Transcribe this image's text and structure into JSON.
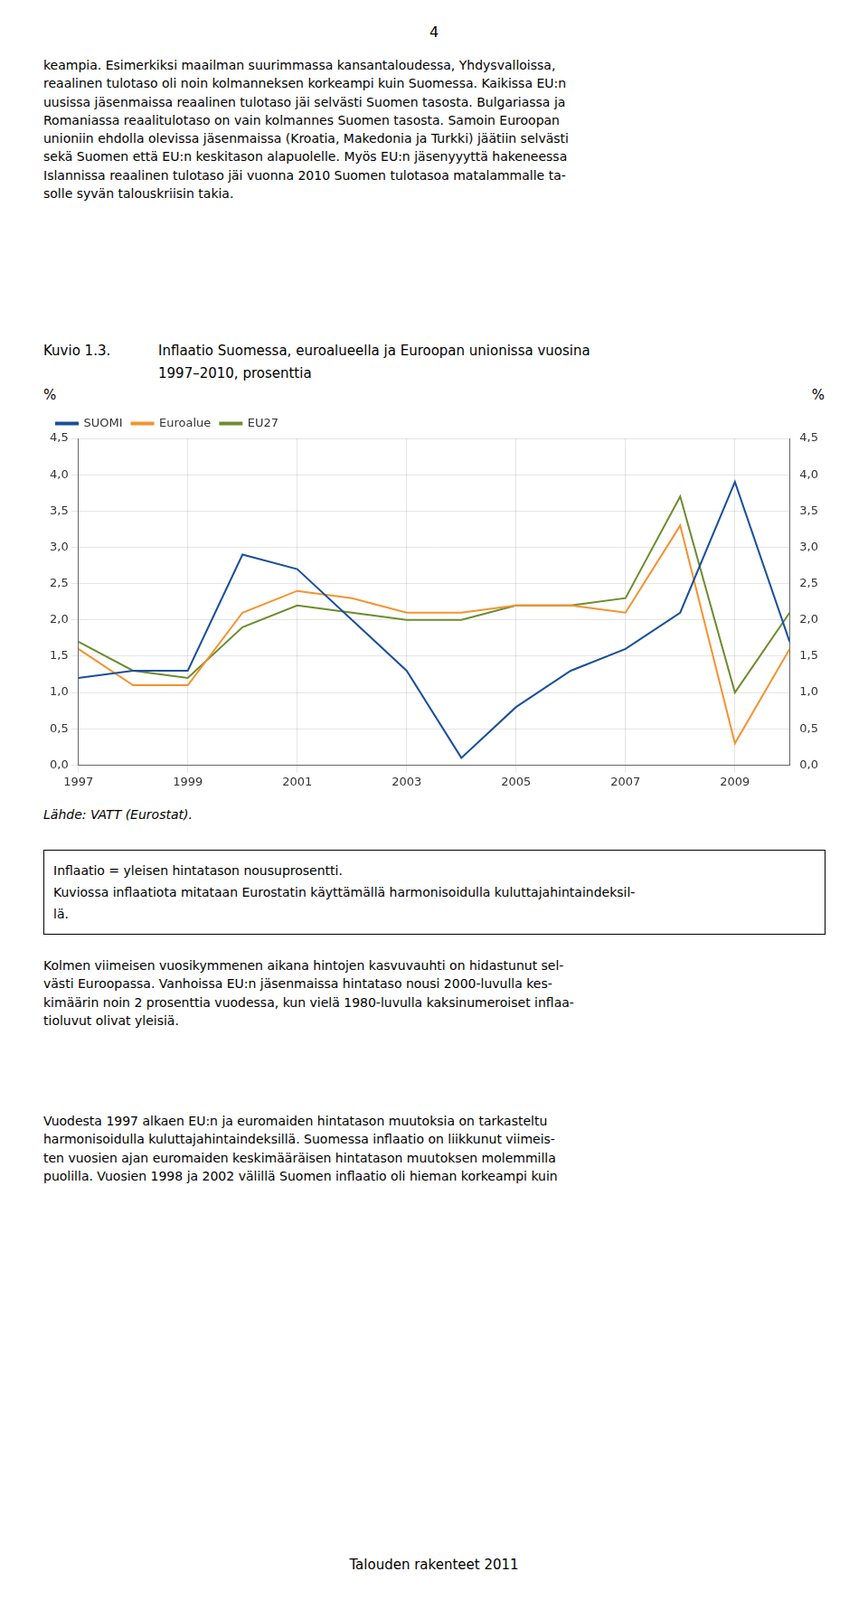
{
  "page": {
    "page_number": "4",
    "top_para": "keampia. Esimerkiksi maailman suurimmassa kansantaloudessa, Yhdysvalloissa,\nreaalinen tulotaso oli noin kolmanneksen korkeampi kuin Suomessa. Kaikissa EU:n\nuusissa jäsenmaissa reaalinen tulotaso jäi selvästi Suomen tasosta. Bulgariassa ja\nRomaniassa reaalitulotaso on vain kolmannes Suomen tasosta. Samoin Euroopan\nunioniin ehdolla olevissa jäsenmaissa (Kroatia, Makedonia ja Turkki) jäätiin selvästi\nsekä Suomen että EU:n keskitason alapuolelle. Myös EU:n jäsenyyyttä hakeneessa\nIslannissa reaalinen tulotaso jäi vuonna 2010 Suomen tulotasoa matalammalle ta-\nsolle syvän talouskriisin takia.",
    "source_text": "Lähde: VATT (Eurostat).",
    "box_lines": [
      "Inflaatio = yleisen hintatason nousuprosentti.",
      "Kuviossa inflaatiota mitataan Eurostatin käyttämällä harmonisoidulla kuluttajahintaindeksil-",
      "lä."
    ],
    "bottom_para1": "Kolmen viimeisen vuosikymmenen aikana hintojen kasvuvauhti on hidastunut sel-\nvästi Euroopassa. Vanhoissa EU:n jäsenmaissa hintataso nousi 2000-luvulla kes-\nkimäärin noin 2 prosenttia vuodessa, kun vielä 1980-luvulla kaksinumeroiset inflaa-\ntioluvut olivat yleisiä.",
    "bottom_para2": "Vuodesta 1997 alkaen EU:n ja euromaiden hintatason muutoksia on tarkasteltu\nharmonisoidulla kuluttajahintaindeksillä. Suomessa inflaatio on liikkunut viimeis-\nten vuosien ajan euromaiden keskimääräisen hintatason muutoksen molemmilla\npuolilla. Vuosien 1998 ja 2002 välillä Suomen inflaatio oli hieman korkeampi kuin",
    "footer_text": "Talouden rakenteet 2011"
  },
  "chart_data": {
    "type": "line",
    "title_label": "Kuvio 1.3.",
    "title": [
      "Inflaatio Suomessa, euroalueella ja Euroopan unionissa vuosina",
      "1997–2010, prosenttia"
    ],
    "ylabel": "%",
    "y2label": "%",
    "x": [
      1997,
      1998,
      1999,
      2000,
      2001,
      2002,
      2003,
      2004,
      2005,
      2006,
      2007,
      2008,
      2009,
      2010
    ],
    "xlim": [
      1997,
      2010
    ],
    "xticks": [
      1997,
      1999,
      2001,
      2003,
      2005,
      2007,
      2009
    ],
    "ylim": [
      0.0,
      4.5
    ],
    "yticks": [
      {
        "value": 0.0,
        "label": "0,0"
      },
      {
        "value": 0.5,
        "label": "0,5"
      },
      {
        "value": 1.0,
        "label": "1,0"
      },
      {
        "value": 1.5,
        "label": "1,5"
      },
      {
        "value": 2.0,
        "label": "2,0"
      },
      {
        "value": 2.5,
        "label": "2,5"
      },
      {
        "value": 3.0,
        "label": "3,0"
      },
      {
        "value": 3.5,
        "label": "3,5"
      },
      {
        "value": 4.0,
        "label": "4,0"
      },
      {
        "value": 4.5,
        "label": "4,5"
      }
    ],
    "y2lim": [
      0.0,
      4.5
    ],
    "y2ticks": [
      {
        "value": 0.0,
        "label": "0,0"
      },
      {
        "value": 0.5,
        "label": "0,5"
      },
      {
        "value": 1.0,
        "label": "1,0"
      },
      {
        "value": 1.5,
        "label": "1,5"
      },
      {
        "value": 2.0,
        "label": "2,0"
      },
      {
        "value": 2.5,
        "label": "2,5"
      },
      {
        "value": 3.0,
        "label": "3,0"
      },
      {
        "value": 3.5,
        "label": "3,5"
      },
      {
        "value": 4.0,
        "label": "4,0"
      },
      {
        "value": 4.5,
        "label": "4,5"
      }
    ],
    "series": [
      {
        "name": "SUOMI",
        "color": "#1a4f9c",
        "values": [
          1.2,
          1.3,
          1.3,
          2.9,
          2.7,
          2.0,
          1.3,
          0.1,
          0.8,
          1.3,
          1.6,
          2.1,
          3.9,
          1.7
        ]
      },
      {
        "name": "Euroalue",
        "color": "#f5922f",
        "values": [
          1.6,
          1.1,
          1.1,
          2.1,
          2.4,
          2.3,
          2.1,
          2.1,
          2.2,
          2.2,
          2.1,
          3.3,
          0.3,
          1.6
        ]
      },
      {
        "name": "EU27",
        "color": "#6e8c2e",
        "values": [
          1.7,
          1.3,
          1.2,
          1.9,
          2.2,
          2.1,
          2.0,
          2.0,
          2.2,
          2.2,
          2.3,
          3.7,
          1.0,
          2.1
        ]
      }
    ],
    "grid": true,
    "legend": "upper left"
  }
}
